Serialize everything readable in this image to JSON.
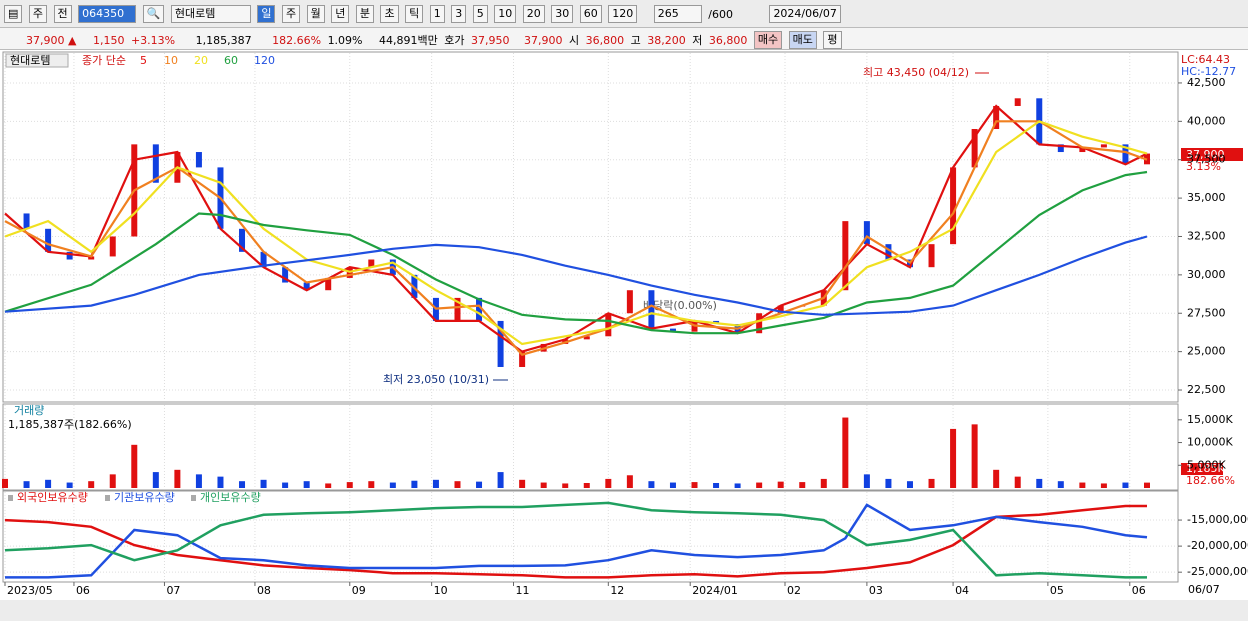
{
  "toolbar": {
    "items": [
      "주",
      "전",
      "064350",
      "현대로템",
      "일",
      "주",
      "월",
      "년",
      "분",
      "초",
      "틱",
      "1",
      "3",
      "5",
      "10",
      "20",
      "30",
      "60",
      "120",
      "265",
      "/600",
      "2024/06/07"
    ]
  },
  "info": {
    "items": [
      "37,900 ▲",
      "1,150",
      "+3.13%",
      "1,185,387",
      "182.66%",
      "1.09%",
      "44,891백만",
      "호가",
      "37,950",
      "37,900",
      "시",
      "36,800",
      "고",
      "38,200",
      "저",
      "36,800",
      "매수",
      "매도",
      "평"
    ]
  },
  "chart_data": [
    {
      "type": "candlestick",
      "name": "현대로템",
      "legend_prefix": "종가 단순",
      "grid": true,
      "x": [
        0,
        5,
        10,
        15,
        20,
        25,
        30,
        35,
        40,
        45,
        50,
        55,
        60,
        65,
        70,
        75,
        80,
        85,
        90,
        95,
        100,
        105,
        110,
        115,
        120,
        125,
        130,
        135,
        140,
        145,
        150,
        155,
        160,
        165,
        170,
        175,
        180,
        185,
        190,
        195,
        200,
        205,
        210,
        215,
        220,
        225,
        230,
        235,
        240,
        245,
        250,
        255,
        260,
        265
      ],
      "close": [
        34000,
        33000,
        31500,
        31000,
        31200,
        32500,
        38500,
        36000,
        38000,
        37000,
        33000,
        31500,
        30500,
        29500,
        29000,
        29800,
        30500,
        31000,
        30000,
        28500,
        27000,
        28500,
        27000,
        24000,
        25000,
        25500,
        25800,
        26000,
        27500,
        29000,
        26500,
        26300,
        27000,
        26800,
        26200,
        27500,
        28000,
        28000,
        29000,
        33500,
        32000,
        31000,
        30500,
        32000,
        37000,
        39500,
        41000,
        41500,
        38500,
        38000,
        38300,
        38500,
        37200,
        37900
      ],
      "up_color": "#e01010",
      "down_color": "#1040e0",
      "series": [
        {
          "name": "5",
          "color": "#e01010",
          "x": [
            0,
            10,
            20,
            30,
            40,
            50,
            60,
            70,
            80,
            90,
            100,
            110,
            120,
            130,
            140,
            150,
            160,
            170,
            180,
            190,
            200,
            210,
            220,
            230,
            240,
            250,
            260,
            265
          ],
          "values": [
            34000,
            31500,
            31200,
            37500,
            38000,
            33000,
            30500,
            29000,
            30500,
            30000,
            27000,
            27000,
            25000,
            25800,
            27500,
            26500,
            27000,
            26200,
            28000,
            29000,
            32000,
            30500,
            37000,
            41000,
            38500,
            38300,
            37200,
            37900
          ]
        },
        {
          "name": "10",
          "color": "#f08020",
          "x": [
            0,
            10,
            20,
            30,
            40,
            50,
            60,
            70,
            80,
            90,
            100,
            110,
            120,
            130,
            140,
            150,
            160,
            170,
            180,
            190,
            200,
            210,
            220,
            230,
            240,
            250,
            260,
            265
          ],
          "values": [
            33500,
            32000,
            31200,
            35500,
            37000,
            35000,
            31500,
            29500,
            30000,
            30500,
            27800,
            28000,
            24800,
            25600,
            26500,
            28000,
            26700,
            26500,
            27500,
            28500,
            32500,
            30800,
            34000,
            40000,
            40000,
            38300,
            38000,
            37500
          ]
        },
        {
          "name": "20",
          "color": "#f0e020",
          "x": [
            0,
            10,
            20,
            30,
            40,
            50,
            60,
            70,
            80,
            90,
            100,
            110,
            120,
            130,
            140,
            150,
            160,
            170,
            180,
            190,
            200,
            210,
            220,
            230,
            240,
            250,
            260,
            265
          ],
          "values": [
            32500,
            33500,
            31500,
            34000,
            37000,
            36000,
            33000,
            31000,
            30200,
            30800,
            29000,
            27500,
            25500,
            26000,
            26500,
            27500,
            27000,
            26700,
            27300,
            28000,
            30500,
            31500,
            33000,
            38000,
            40000,
            39000,
            38300,
            37900
          ]
        },
        {
          "name": "60",
          "color": "#20a040",
          "x": [
            0,
            20,
            35,
            45,
            50,
            60,
            70,
            80,
            90,
            100,
            110,
            120,
            130,
            140,
            150,
            160,
            170,
            180,
            190,
            200,
            210,
            220,
            230,
            240,
            250,
            260,
            265
          ],
          "values": [
            27600,
            29350,
            32000,
            34000,
            33900,
            33250,
            32900,
            32600,
            31300,
            29700,
            28400,
            27400,
            27100,
            27000,
            26400,
            26200,
            26200,
            26700,
            27200,
            28200,
            28500,
            29300,
            31600,
            33900,
            35500,
            36500,
            36700
          ]
        },
        {
          "name": "120",
          "color": "#2050e0",
          "x": [
            0,
            20,
            30,
            45,
            60,
            80,
            90,
            100,
            110,
            120,
            130,
            140,
            150,
            160,
            170,
            180,
            190,
            200,
            210,
            220,
            230,
            240,
            250,
            260,
            265
          ],
          "values": [
            27600,
            28000,
            28700,
            30000,
            30600,
            31300,
            31700,
            31950,
            31800,
            31300,
            30600,
            30000,
            29300,
            28700,
            28200,
            27600,
            27400,
            27500,
            27600,
            28000,
            29000,
            30000,
            31100,
            32100,
            32500
          ]
        }
      ],
      "xlim": [
        0,
        265
      ],
      "ylim": [
        21850,
        44320
      ],
      "yticks": [
        {
          "value": 22500,
          "label": "22,500"
        },
        {
          "value": 25000,
          "label": "25,000"
        },
        {
          "value": 27500,
          "label": "27,500"
        },
        {
          "value": 30000,
          "label": "30,000"
        },
        {
          "value": 32500,
          "label": "32,500"
        },
        {
          "value": 35000,
          "label": "35,000"
        },
        {
          "value": 37500,
          "label": "37,500"
        },
        {
          "value": 40000,
          "label": "40,000"
        },
        {
          "value": 42500,
          "label": "42,500"
        }
      ],
      "annotations": [
        "최고 43,450 (04/12)",
        "최저 23,050 (10/31)",
        "배당락(0.00%)"
      ],
      "lc": "LC:64.43",
      "hc": "HC:-12.77",
      "last_price": "37,900",
      "last_change": "3.13%"
    },
    {
      "type": "bar",
      "title": "거래량",
      "subtitle": "1,185,387주(182.66%)",
      "color": "#e01010",
      "values": [
        2000,
        1500,
        1800,
        1200,
        1500,
        3000,
        9500,
        3500,
        4000,
        3000,
        2500,
        1500,
        1800,
        1200,
        1500,
        1000,
        1300,
        1500,
        1200,
        1600,
        1800,
        1500,
        1400,
        3500,
        1800,
        1200,
        1000,
        1100,
        2000,
        2800,
        1500,
        1200,
        1300,
        1100,
        1000,
        1200,
        1400,
        1300,
        2000,
        15500,
        3000,
        2000,
        1500,
        2000,
        13000,
        14000,
        4000,
        2500,
        2000,
        1500,
        1200,
        1000,
        1200,
        1185
      ],
      "ylim": [
        0,
        17600
      ],
      "yticks": [
        {
          "value": 5000,
          "label": "5,000K"
        },
        {
          "value": 10000,
          "label": "10,000K"
        },
        {
          "value": 15000,
          "label": "15,000K"
        }
      ],
      "last_value": "1,185K",
      "last_ratio": "182.66%"
    },
    {
      "type": "line",
      "grid": true,
      "series": [
        {
          "name": "외국인보유수량",
          "color": "#e01010",
          "x": [
            0,
            10,
            20,
            30,
            40,
            50,
            60,
            70,
            80,
            90,
            100,
            110,
            120,
            130,
            140,
            150,
            160,
            170,
            180,
            190,
            200,
            210,
            220,
            230,
            240,
            250,
            260,
            265
          ],
          "values": [
            -15000000,
            -15400000,
            -16300000,
            -19800000,
            -21700000,
            -22700000,
            -23700000,
            -24200000,
            -24600000,
            -25200000,
            -25200000,
            -25400000,
            -25600000,
            -26000000,
            -26000000,
            -25600000,
            -25400000,
            -25800000,
            -25200000,
            -25000000,
            -24200000,
            -23100000,
            -19800000,
            -14400000,
            -14000000,
            -13100000,
            -12300000,
            -12300000
          ]
        },
        {
          "name": "기관보유수량",
          "color": "#2050e0",
          "x": [
            0,
            10,
            20,
            30,
            40,
            50,
            60,
            70,
            80,
            90,
            100,
            110,
            120,
            130,
            140,
            150,
            160,
            170,
            180,
            190,
            195,
            200,
            210,
            220,
            230,
            240,
            250,
            260,
            265
          ],
          "values": [
            -26000000,
            -26000000,
            -25600000,
            -16900000,
            -17900000,
            -22300000,
            -22700000,
            -23700000,
            -24200000,
            -24200000,
            -24200000,
            -23800000,
            -23800000,
            -23700000,
            -22700000,
            -20800000,
            -21700000,
            -22100000,
            -21700000,
            -20800000,
            -18500000,
            -12100000,
            -16900000,
            -16000000,
            -14400000,
            -15400000,
            -16300000,
            -17900000,
            -18300000
          ]
        },
        {
          "name": "개인보유수량",
          "color": "#20a060",
          "x": [
            0,
            10,
            20,
            30,
            40,
            50,
            60,
            70,
            80,
            90,
            100,
            110,
            120,
            130,
            140,
            150,
            160,
            170,
            180,
            190,
            200,
            210,
            220,
            230,
            240,
            250,
            260,
            265
          ],
          "values": [
            -20800000,
            -20400000,
            -19800000,
            -22700000,
            -20800000,
            -16000000,
            -14000000,
            -13700000,
            -13500000,
            -13100000,
            -12700000,
            -12500000,
            -12500000,
            -12100000,
            -11700000,
            -13100000,
            -13500000,
            -13700000,
            -14000000,
            -15000000,
            -19800000,
            -18800000,
            -16900000,
            -25600000,
            -25200000,
            -25600000,
            -26000000,
            -26000000
          ]
        }
      ],
      "ylim": [
        -26500000,
        -10000000
      ],
      "yticks": [
        {
          "value": -15000000,
          "label": "-15,000,000"
        },
        {
          "value": -20000000,
          "label": "-20,000,000"
        },
        {
          "value": -25000000,
          "label": "-25,000,000"
        }
      ],
      "xticks": [
        {
          "value": 0,
          "label": "2023/05"
        },
        {
          "value": 16,
          "label": "06"
        },
        {
          "value": 37,
          "label": "07"
        },
        {
          "value": 58,
          "label": "08"
        },
        {
          "value": 80,
          "label": "09"
        },
        {
          "value": 99,
          "label": "10"
        },
        {
          "value": 118,
          "label": "11"
        },
        {
          "value": 140,
          "label": "12"
        },
        {
          "value": 159,
          "label": "2024/01"
        },
        {
          "value": 181,
          "label": "02"
        },
        {
          "value": 200,
          "label": "03"
        },
        {
          "value": 220,
          "label": "04"
        },
        {
          "value": 242,
          "label": "05"
        },
        {
          "value": 261,
          "label": "06"
        }
      ],
      "date_end": "06/07"
    }
  ]
}
